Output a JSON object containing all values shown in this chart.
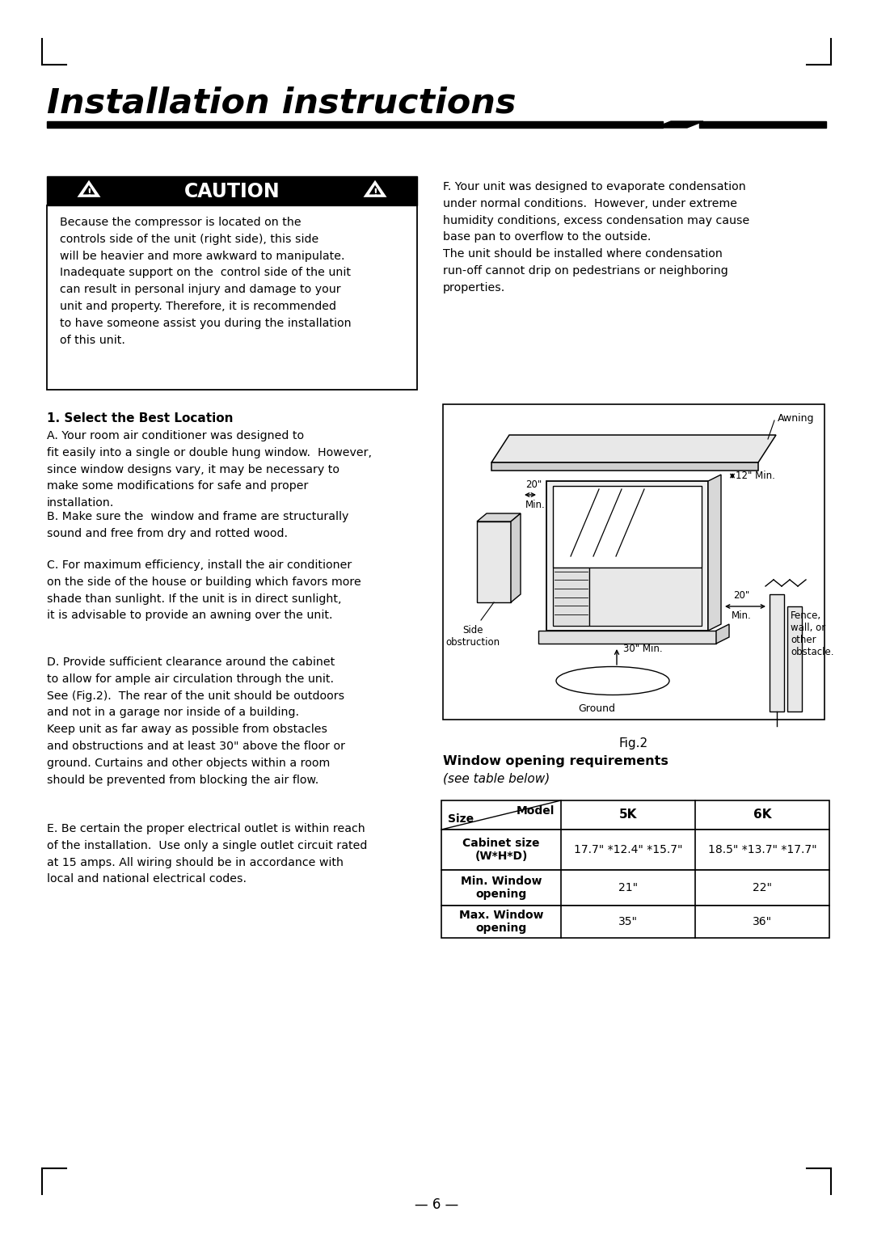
{
  "title": "Installation instructions",
  "bg_color": "#ffffff",
  "caution_header": "CAUTION",
  "caution_text": "Because the compressor is located on the\ncontrols side of the unit (right side), this side\nwill be heavier and more awkward to manipulate.\nInadequate support on the  control side of the unit\ncan result in personal injury and damage to your\nunit and property. Therefore, it is recommended\nto have someone assist you during the installation\nof this unit.",
  "right_top_text": "F. Your unit was designed to evaporate condensation\nunder normal conditions.  However, under extreme\nhumidity conditions, excess condensation may cause\nbase pan to overflow to the outside.\nThe unit should be installed where condensation\nrun-off cannot drip on pedestrians or neighboring\nproperties.",
  "section1_title": "1. Select the Best Location",
  "para_A": "A. Your room air conditioner was designed to\nfit easily into a single or double hung window.  However,\nsince window designs vary, it may be necessary to\nmake some modifications for safe and proper\ninstallation.",
  "para_B": "B. Make sure the  window and frame are structurally\nsound and free from dry and rotted wood.",
  "para_C": "C. For maximum efficiency, install the air conditioner\non the side of the house or building which favors more\nshade than sunlight. If the unit is in direct sunlight,\nit is advisable to provide an awning over the unit.",
  "para_D": "D. Provide sufficient clearance around the cabinet\nto allow for ample air circulation through the unit.\nSee (Fig.2).  The rear of the unit should be outdoors\nand not in a garage nor inside of a building.\nKeep unit as far away as possible from obstacles\nand obstructions and at least 30\" above the floor or\nground. Curtains and other objects within a room\nshould be prevented from blocking the air flow.",
  "para_E": "E. Be certain the proper electrical outlet is within reach\nof the installation.  Use only a single outlet circuit rated\nat 15 amps. All wiring should be in accordance with\nlocal and national electrical codes.",
  "fig2_label": "Fig.2",
  "window_title": "Window opening requirements",
  "window_subtitle": "(see table below)",
  "table_headers_left": "Size",
  "table_headers_right": "Model",
  "table_col2": "5K",
  "table_col3": "6K",
  "table_row1_label": "Cabinet size\n(W*H*D)",
  "table_row1_5k": "17.7\" *12.4\" *15.7\"",
  "table_row1_6k": "18.5\" *13.7\" *17.7\"",
  "table_row2_label": "Min. Window\nopening",
  "table_row2_5k": "21\"",
  "table_row2_6k": "22\"",
  "table_row3_label": "Max. Window\nopening",
  "table_row3_5k": "35\"",
  "table_row3_6k": "36\""
}
